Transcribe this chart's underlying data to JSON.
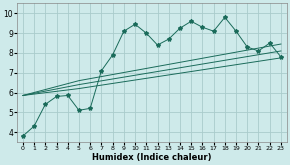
{
  "title": "",
  "xlabel": "Humidex (Indice chaleur)",
  "bg_color": "#ceeaea",
  "grid_color": "#aacccc",
  "line_color": "#1a6b5a",
  "xlim": [
    -0.5,
    23.5
  ],
  "ylim": [
    3.5,
    10.5
  ],
  "x_ticks": [
    0,
    1,
    2,
    3,
    4,
    5,
    6,
    7,
    8,
    9,
    10,
    11,
    12,
    13,
    14,
    15,
    16,
    17,
    18,
    19,
    20,
    21,
    22,
    23
  ],
  "y_ticks": [
    4,
    5,
    6,
    7,
    8,
    9,
    10
  ],
  "series1_x": [
    0,
    1,
    2,
    3,
    4,
    5,
    6,
    7,
    8,
    9,
    10,
    11,
    12,
    13,
    14,
    15,
    16,
    17,
    18,
    19,
    20,
    21,
    22,
    23
  ],
  "series1_y": [
    3.8,
    4.3,
    5.4,
    5.8,
    5.85,
    5.1,
    5.2,
    7.1,
    7.9,
    9.1,
    9.45,
    9.0,
    8.4,
    8.7,
    9.25,
    9.6,
    9.3,
    9.1,
    9.8,
    9.1,
    8.3,
    8.1,
    8.5,
    7.8
  ],
  "series2_x": [
    0,
    5,
    23
  ],
  "series2_y": [
    5.85,
    6.2,
    7.75
  ],
  "series3_x": [
    0,
    5,
    23
  ],
  "series3_y": [
    5.85,
    6.4,
    8.1
  ],
  "series4_x": [
    0,
    5,
    23
  ],
  "series4_y": [
    5.85,
    6.6,
    8.45
  ]
}
